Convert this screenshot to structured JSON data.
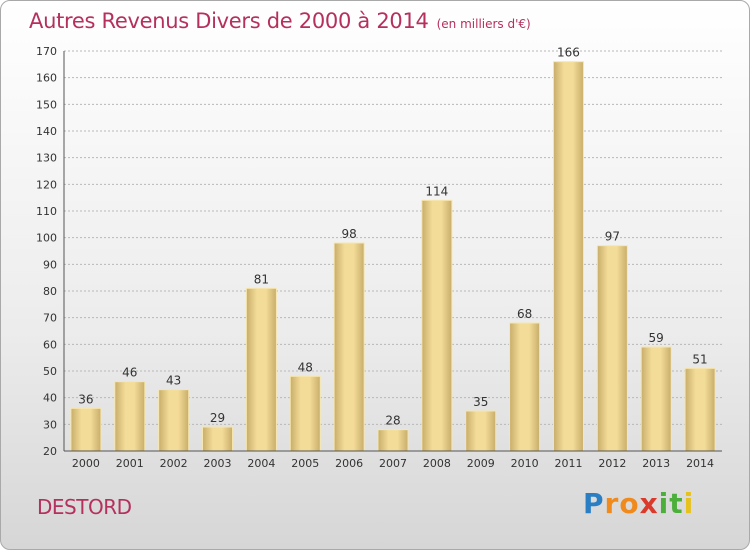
{
  "chart_data": {
    "type": "bar",
    "title": "Autres Revenus Divers de 2000 à 2014",
    "unit": "(en milliers d'€)",
    "categories": [
      "2000",
      "2001",
      "2002",
      "2003",
      "2004",
      "2005",
      "2006",
      "2007",
      "2008",
      "2009",
      "2010",
      "2011",
      "2012",
      "2013",
      "2014"
    ],
    "values": [
      36,
      46,
      43,
      29,
      81,
      48,
      98,
      28,
      114,
      35,
      68,
      166,
      97,
      59,
      51
    ],
    "ylim": [
      20,
      170
    ],
    "yticks": [
      20,
      30,
      40,
      50,
      60,
      70,
      80,
      90,
      100,
      110,
      120,
      130,
      140,
      150,
      160,
      170
    ],
    "grid": true,
    "bar_color": "#f0d890",
    "bar_color_dark": "#c8ad6a"
  },
  "commune": "DESTORD",
  "logo": {
    "letters": [
      "P",
      "r",
      "o",
      "x",
      "i",
      "t",
      "i"
    ],
    "colors": [
      "#2a7fc4",
      "#f08a1c",
      "#f08a1c",
      "#d93a2b",
      "#4caf3c",
      "#4caf3c",
      "#e8c21c"
    ]
  }
}
